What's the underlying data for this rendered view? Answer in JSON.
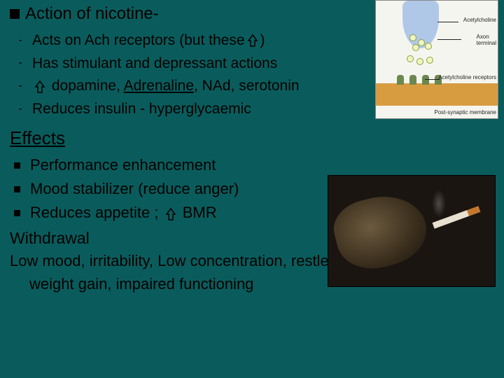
{
  "title": {
    "prefix": "Action",
    "rest": " of nicotine-"
  },
  "action_items": [
    {
      "before": "Acts on Ach receptors (but these",
      "arrow": true,
      "after": ")"
    },
    {
      "before": "Has stimulant and depressant actions",
      "arrow": false,
      "after": ""
    },
    {
      "before": "",
      "arrow": true,
      "after_parts": [
        " dopamine, ",
        "Adrenaline",
        ", NAd, serotonin"
      ],
      "underlined_idx": 1
    },
    {
      "before": "Reduces insulin - hyperglycaemic",
      "arrow": false,
      "after": ""
    }
  ],
  "effects_heading": "Effects",
  "effects_items": [
    {
      "text": "Performance enhancement",
      "arrow_after": null
    },
    {
      "text": "Mood stabilizer (reduce anger)",
      "arrow_after": null
    },
    {
      "text": "Reduces appetite ; ",
      "arrow_after": " BMR"
    }
  ],
  "withdrawal_heading": "Withdrawal",
  "withdrawal_lines": [
    "Low mood, irritability, Low concentration, restlessness",
    "weight gain, impaired functioning"
  ],
  "diagram_labels": {
    "ach": "Acetylcholine",
    "axon": "Axon\nterminal",
    "receptors": "Acetylcholine receptors",
    "membrane": "Post-synaptic membrane"
  },
  "colors": {
    "background": "#0a5c5c",
    "text": "#000000",
    "arrow_stroke": "#000000",
    "diagram_bg": "#f5f5f0",
    "axon": "#b0c8e8",
    "membrane": "#d89c40",
    "receptor": "#6b884f"
  }
}
